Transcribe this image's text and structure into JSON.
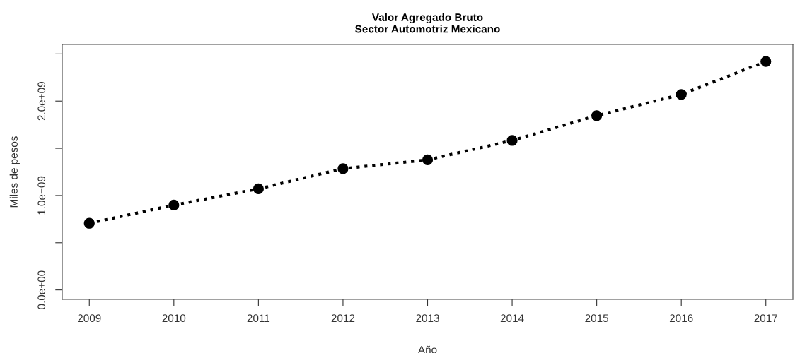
{
  "chart_data": {
    "type": "line",
    "title": "Valor Agregado Bruto\nSector Automotriz Mexicano",
    "xlabel": "Año",
    "ylabel": "Miles de pesos",
    "x": [
      2009,
      2010,
      2011,
      2012,
      2013,
      2014,
      2015,
      2016,
      2017
    ],
    "series": [
      {
        "color": "#000000",
        "values": [
          706000000,
          899000000,
          1071000000,
          1285000000,
          1378000000,
          1583000000,
          1846000000,
          2070000000,
          2420000000
        ]
      }
    ],
    "xlim": [
      2008.68,
      2017.32
    ],
    "xticks": [
      2009,
      2010,
      2011,
      2012,
      2013,
      2014,
      2015,
      2016,
      2017
    ],
    "ylim": [
      -100000000,
      2600000000
    ],
    "yticks": [
      {
        "value": 0,
        "label": "0.0e+00"
      },
      {
        "value": 500000000,
        "label": null
      },
      {
        "value": 1000000000,
        "label": "1.0e+09"
      },
      {
        "value": 1500000000,
        "label": null
      },
      {
        "value": 2000000000,
        "label": "2.0e+09"
      },
      {
        "value": 2500000000,
        "label": null
      }
    ],
    "grid": false,
    "legend": false,
    "marker": "circle",
    "line_style": "dotted"
  }
}
